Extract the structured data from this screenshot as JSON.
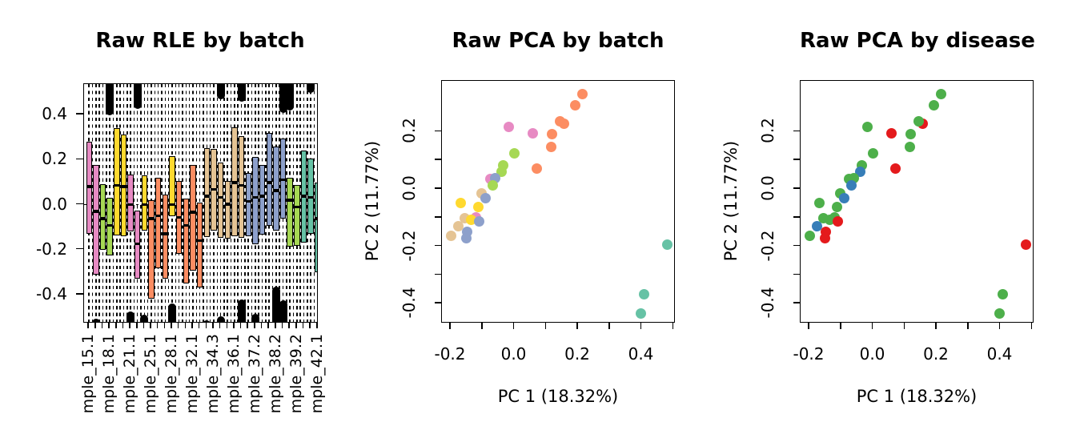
{
  "figure": {
    "background": "#ffffff",
    "text_color": "#000000"
  },
  "palette": {
    "batch": {
      "pink": "#E78AC3",
      "green": "#A6D854",
      "yellow": "#FFD92F",
      "orange": "#FC8D62",
      "tan": "#E5C494",
      "blue": "#8DA0CB",
      "teal": "#66C2A5"
    },
    "disease": {
      "red": "#E41A1C",
      "green": "#4DAF4A",
      "blue": "#377EB8"
    }
  },
  "chart_data": [
    {
      "type": "boxplot",
      "title": "Raw RLE by batch",
      "ylim": [
        -0.528,
        0.536
      ],
      "y_ticks": [
        {
          "v": 0.4,
          "label": "0.4"
        },
        {
          "v": 0.2,
          "label": "0.2"
        },
        {
          "v": 0.0,
          "label": "0.0"
        },
        {
          "v": -0.2,
          "label": "-0.2"
        },
        {
          "v": -0.4,
          "label": "-0.4"
        }
      ],
      "zero_line": true,
      "n_boxes": 34,
      "x_tick_labels": [
        {
          "pos": 1,
          "label": "mple_15.1"
        },
        {
          "pos": 4,
          "label": "mple_18.1"
        },
        {
          "pos": 7,
          "label": "mple_21.1"
        },
        {
          "pos": 10,
          "label": "mple_25.1"
        },
        {
          "pos": 13,
          "label": "mple_28.1"
        },
        {
          "pos": 16,
          "label": "mple_32.1"
        },
        {
          "pos": 19,
          "label": "mple_34.3"
        },
        {
          "pos": 22,
          "label": "mple_36.1"
        },
        {
          "pos": 25,
          "label": "mple_37.2"
        },
        {
          "pos": 28,
          "label": "mple_38.2"
        },
        {
          "pos": 31,
          "label": "mple_39.2"
        },
        {
          "pos": 34,
          "label": "mple_42.1"
        }
      ],
      "boxes": [
        {
          "color": "pink",
          "q1": -0.13,
          "median": 0.08,
          "q3": 0.28
        },
        {
          "color": "pink",
          "q1": -0.31,
          "median": -0.03,
          "q3": 0.175
        },
        {
          "color": "green",
          "q1": -0.2,
          "median": -0.063,
          "q3": 0.09
        },
        {
          "color": "green",
          "q1": -0.225,
          "median": -0.093,
          "q3": 0.03
        },
        {
          "color": "yellow",
          "q1": -0.135,
          "median": 0.086,
          "q3": 0.34
        },
        {
          "color": "yellow",
          "q1": -0.14,
          "median": 0.08,
          "q3": 0.31
        },
        {
          "color": "pink",
          "q1": -0.12,
          "median": 0.0,
          "q3": 0.133
        },
        {
          "color": "pink",
          "q1": -0.33,
          "median": -0.175,
          "q3": -0.028
        },
        {
          "color": "yellow",
          "q1": -0.117,
          "median": 0.0,
          "q3": 0.13
        },
        {
          "color": "orange",
          "q1": -0.42,
          "median": -0.063,
          "q3": 0.02
        },
        {
          "color": "orange",
          "q1": -0.283,
          "median": -0.05,
          "q3": 0.121
        },
        {
          "color": "orange",
          "q1": -0.33,
          "median": -0.13,
          "q3": 0.044
        },
        {
          "color": "yellow",
          "q1": -0.05,
          "median": 0.0,
          "q3": 0.217
        },
        {
          "color": "orange",
          "q1": -0.218,
          "median": -0.057,
          "q3": 0.104
        },
        {
          "color": "orange",
          "q1": -0.35,
          "median": -0.093,
          "q3": 0.026
        },
        {
          "color": "orange",
          "q1": -0.295,
          "median": -0.033,
          "q3": 0.175
        },
        {
          "color": "orange",
          "q1": -0.37,
          "median": -0.16,
          "q3": 0.01
        },
        {
          "color": "tan",
          "q1": -0.146,
          "median": 0.038,
          "q3": 0.252
        },
        {
          "color": "tan",
          "q1": -0.117,
          "median": 0.068,
          "q3": 0.246
        },
        {
          "color": "tan",
          "q1": -0.146,
          "median": 0.032,
          "q3": 0.187
        },
        {
          "color": "tan",
          "q1": -0.152,
          "median": 0.002,
          "q3": 0.104
        },
        {
          "color": "tan",
          "q1": -0.14,
          "median": 0.098,
          "q3": 0.342
        },
        {
          "color": "tan",
          "q1": -0.146,
          "median": 0.086,
          "q3": 0.306
        },
        {
          "color": "blue",
          "q1": -0.14,
          "median": 0.014,
          "q3": 0.139
        },
        {
          "color": "blue",
          "q1": -0.176,
          "median": 0.032,
          "q3": 0.211
        },
        {
          "color": "blue",
          "q1": -0.134,
          "median": 0.038,
          "q3": 0.175
        },
        {
          "color": "blue",
          "q1": -0.093,
          "median": 0.098,
          "q3": 0.318
        },
        {
          "color": "blue",
          "q1": -0.117,
          "median": 0.062,
          "q3": 0.258
        },
        {
          "color": "blue",
          "q1": -0.063,
          "median": 0.11,
          "q3": 0.294
        },
        {
          "color": "green",
          "q1": -0.188,
          "median": 0.02,
          "q3": 0.121
        },
        {
          "color": "green",
          "q1": -0.182,
          "median": -0.01,
          "q3": 0.086
        },
        {
          "color": "teal",
          "q1": -0.17,
          "median": 0.038,
          "q3": 0.24
        },
        {
          "color": "teal",
          "q1": -0.129,
          "median": 0.032,
          "q3": 0.205
        },
        {
          "color": "teal",
          "q1": -0.3,
          "median": -0.063,
          "q3": 0.098
        }
      ],
      "top_outlier_clusters": [
        {
          "box": 4,
          "to": 0.39
        },
        {
          "box": 8,
          "to": 0.42
        },
        {
          "box": 20,
          "to": 0.46
        },
        {
          "box": 23,
          "to": 0.45
        },
        {
          "box": 29,
          "to": 0.4
        },
        {
          "box": 30,
          "to": 0.41
        },
        {
          "box": 33,
          "to": 0.49
        }
      ],
      "bottom_outlier_clusters": [
        {
          "box": 2,
          "to": -0.5
        },
        {
          "box": 7,
          "to": -0.468
        },
        {
          "box": 9,
          "to": -0.48
        },
        {
          "box": 13,
          "to": -0.43
        },
        {
          "box": 18,
          "to": -0.505
        },
        {
          "box": 20,
          "to": -0.487
        },
        {
          "box": 23,
          "to": -0.414
        },
        {
          "box": 25,
          "to": -0.477
        },
        {
          "box": 28,
          "to": -0.358
        },
        {
          "box": 29,
          "to": -0.417
        }
      ]
    },
    {
      "type": "scatter",
      "title": "Raw PCA by batch",
      "xlabel": "PC 1 (18.32%)",
      "ylabel": "PC 2 (11.77%)",
      "xlim": [
        -0.228,
        0.507
      ],
      "ylim": [
        -0.469,
        0.377
      ],
      "palette_key": "batch",
      "x_ticks_all": [
        -0.2,
        -0.1,
        0.0,
        0.1,
        0.2,
        0.3,
        0.4,
        0.5
      ],
      "y_ticks_all": [
        0.2,
        0.1,
        0.0,
        -0.1,
        -0.2,
        -0.3,
        -0.4
      ],
      "x_tick_labels": [
        {
          "v": -0.2,
          "label": "-0.2"
        },
        {
          "v": 0.0,
          "label": "0.0"
        },
        {
          "v": 0.2,
          "label": "0.2"
        },
        {
          "v": 0.4,
          "label": "0.4"
        }
      ],
      "y_tick_labels": [
        {
          "v": 0.2,
          "label": "0.2"
        },
        {
          "v": 0.0,
          "label": "0.0"
        },
        {
          "v": -0.2,
          "label": "-0.2"
        },
        {
          "v": -0.4,
          "label": "-0.4"
        }
      ],
      "points": [
        {
          "x": 0.213,
          "y": 0.332,
          "group": "orange"
        },
        {
          "x": 0.19,
          "y": 0.292,
          "group": "orange"
        },
        {
          "x": 0.143,
          "y": 0.235,
          "group": "orange"
        },
        {
          "x": 0.156,
          "y": 0.227,
          "group": "orange"
        },
        {
          "x": -0.018,
          "y": 0.216,
          "group": "pink"
        },
        {
          "x": 0.057,
          "y": 0.193,
          "group": "pink"
        },
        {
          "x": 0.118,
          "y": 0.191,
          "group": "orange"
        },
        {
          "x": 0.116,
          "y": 0.148,
          "group": "orange"
        },
        {
          "x": -0.001,
          "y": 0.125,
          "group": "green"
        },
        {
          "x": 0.071,
          "y": 0.072,
          "group": "orange"
        },
        {
          "x": -0.035,
          "y": 0.083,
          "group": "green"
        },
        {
          "x": -0.04,
          "y": 0.06,
          "group": "green"
        },
        {
          "x": -0.076,
          "y": 0.034,
          "group": "pink"
        },
        {
          "x": -0.06,
          "y": 0.038,
          "group": "blue"
        },
        {
          "x": -0.069,
          "y": 0.012,
          "group": "green"
        },
        {
          "x": -0.104,
          "y": -0.015,
          "group": "tan"
        },
        {
          "x": -0.091,
          "y": -0.031,
          "group": "blue"
        },
        {
          "x": -0.169,
          "y": -0.048,
          "group": "yellow"
        },
        {
          "x": -0.114,
          "y": -0.064,
          "group": "yellow"
        },
        {
          "x": -0.122,
          "y": -0.098,
          "group": "pink"
        },
        {
          "x": -0.156,
          "y": -0.103,
          "group": "tan"
        },
        {
          "x": -0.135,
          "y": -0.107,
          "group": "yellow"
        },
        {
          "x": -0.111,
          "y": -0.112,
          "group": "blue"
        },
        {
          "x": -0.175,
          "y": -0.13,
          "group": "tan"
        },
        {
          "x": -0.199,
          "y": -0.164,
          "group": "tan"
        },
        {
          "x": -0.148,
          "y": -0.15,
          "group": "blue"
        },
        {
          "x": -0.15,
          "y": -0.172,
          "group": "blue"
        },
        {
          "x": 0.48,
          "y": -0.195,
          "group": "teal"
        },
        {
          "x": 0.408,
          "y": -0.367,
          "group": "teal"
        },
        {
          "x": 0.398,
          "y": -0.435,
          "group": "teal"
        }
      ]
    },
    {
      "type": "scatter",
      "title": "Raw PCA by disease",
      "xlabel": "PC 1 (18.32%)",
      "ylabel": "PC 2 (11.77%)",
      "xlim": [
        -0.228,
        0.507
      ],
      "ylim": [
        -0.469,
        0.377
      ],
      "palette_key": "disease",
      "x_ticks_all": [
        -0.2,
        -0.1,
        0.0,
        0.1,
        0.2,
        0.3,
        0.4,
        0.5
      ],
      "y_ticks_all": [
        0.2,
        0.1,
        0.0,
        -0.1,
        -0.2,
        -0.3,
        -0.4
      ],
      "x_tick_labels": [
        {
          "v": -0.2,
          "label": "-0.2"
        },
        {
          "v": 0.0,
          "label": "0.0"
        },
        {
          "v": 0.2,
          "label": "0.2"
        },
        {
          "v": 0.4,
          "label": "0.4"
        }
      ],
      "y_tick_labels": [
        {
          "v": 0.2,
          "label": "0.2"
        },
        {
          "v": 0.0,
          "label": "0.0"
        },
        {
          "v": -0.2,
          "label": "-0.2"
        },
        {
          "v": -0.4,
          "label": "-0.4"
        }
      ],
      "points": [
        {
          "x": 0.213,
          "y": 0.332,
          "group": "green"
        },
        {
          "x": 0.19,
          "y": 0.292,
          "group": "green"
        },
        {
          "x": 0.156,
          "y": 0.227,
          "group": "red"
        },
        {
          "x": 0.143,
          "y": 0.235,
          "group": "green"
        },
        {
          "x": -0.018,
          "y": 0.216,
          "group": "green"
        },
        {
          "x": 0.057,
          "y": 0.193,
          "group": "red"
        },
        {
          "x": 0.118,
          "y": 0.191,
          "group": "green"
        },
        {
          "x": 0.116,
          "y": 0.148,
          "group": "green"
        },
        {
          "x": -0.001,
          "y": 0.125,
          "group": "green"
        },
        {
          "x": 0.071,
          "y": 0.072,
          "group": "red"
        },
        {
          "x": -0.035,
          "y": 0.083,
          "group": "green"
        },
        {
          "x": -0.04,
          "y": 0.06,
          "group": "blue"
        },
        {
          "x": -0.076,
          "y": 0.034,
          "group": "green"
        },
        {
          "x": -0.06,
          "y": 0.038,
          "group": "green"
        },
        {
          "x": -0.069,
          "y": 0.012,
          "group": "blue"
        },
        {
          "x": -0.104,
          "y": -0.015,
          "group": "green"
        },
        {
          "x": -0.091,
          "y": -0.031,
          "group": "blue"
        },
        {
          "x": -0.169,
          "y": -0.048,
          "group": "green"
        },
        {
          "x": -0.114,
          "y": -0.064,
          "group": "green"
        },
        {
          "x": -0.122,
          "y": -0.098,
          "group": "green"
        },
        {
          "x": -0.156,
          "y": -0.103,
          "group": "green"
        },
        {
          "x": -0.135,
          "y": -0.107,
          "group": "green"
        },
        {
          "x": -0.111,
          "y": -0.112,
          "group": "red"
        },
        {
          "x": -0.175,
          "y": -0.13,
          "group": "blue"
        },
        {
          "x": -0.199,
          "y": -0.164,
          "group": "green"
        },
        {
          "x": -0.148,
          "y": -0.15,
          "group": "red"
        },
        {
          "x": -0.15,
          "y": -0.172,
          "group": "red"
        },
        {
          "x": 0.48,
          "y": -0.195,
          "group": "red"
        },
        {
          "x": 0.408,
          "y": -0.367,
          "group": "green"
        },
        {
          "x": 0.398,
          "y": -0.435,
          "group": "green"
        }
      ]
    }
  ]
}
